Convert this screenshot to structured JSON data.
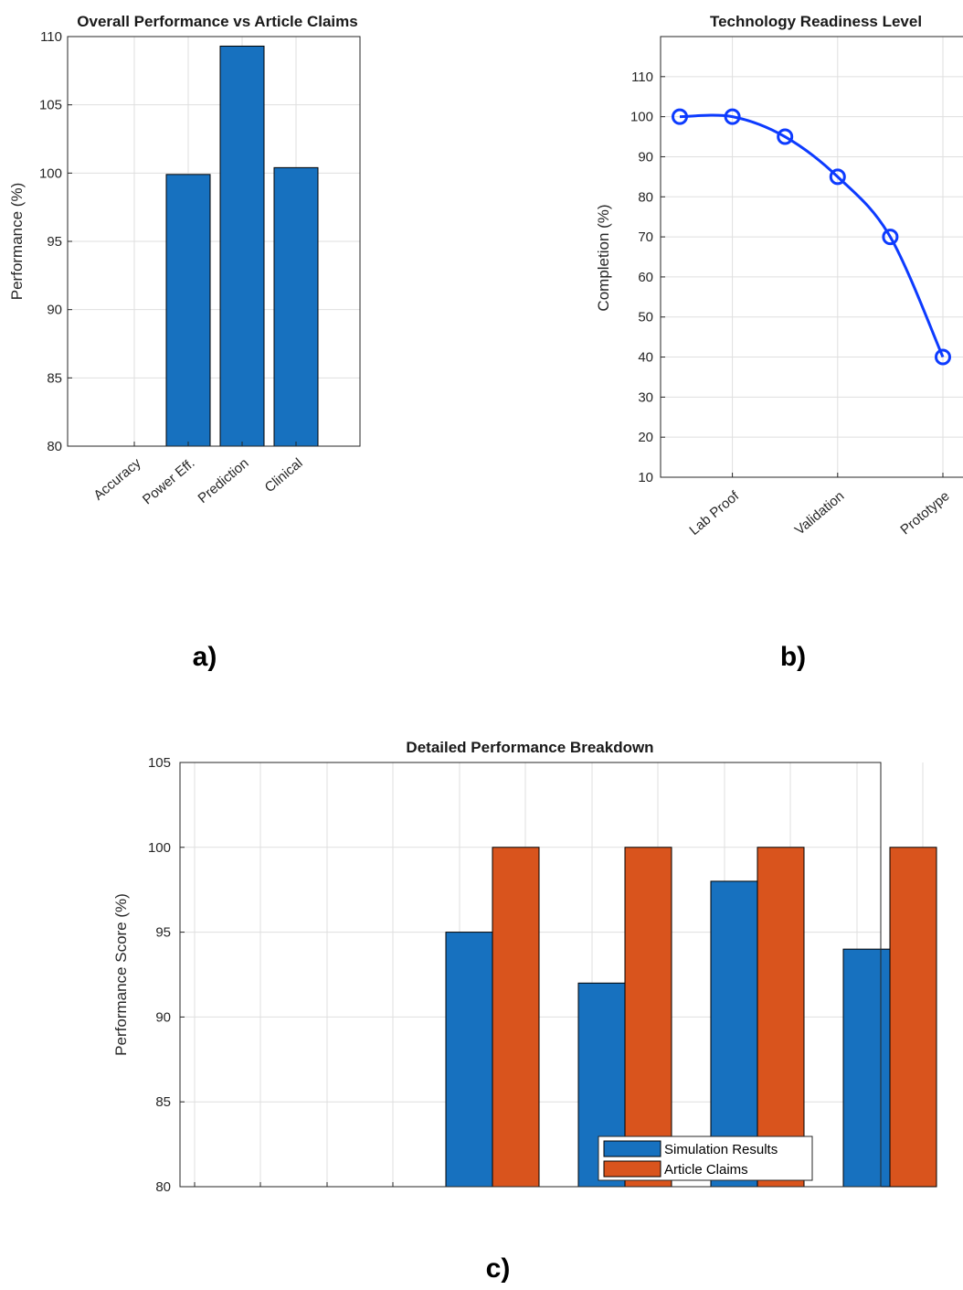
{
  "panel_labels": {
    "a": "a)",
    "b": "b)",
    "c": "c)"
  },
  "chart_data": [
    {
      "id": "a",
      "type": "bar",
      "title": "Overall Performance vs Article Claims",
      "ylabel": "Performance (%)",
      "xlabel": "",
      "categories": [
        "Accuracy",
        "Power Eff.",
        "Prediction",
        "Clinical"
      ],
      "values": [
        null,
        99.9,
        109.3,
        100.4
      ],
      "ylim": [
        80,
        110
      ],
      "yticks": [
        80,
        85,
        90,
        95,
        100,
        105,
        110
      ],
      "grid": true,
      "colors": {
        "bar": "#1771bf"
      }
    },
    {
      "id": "b",
      "type": "line",
      "title": "Technology Readiness Level",
      "ylabel": "Completion (%)",
      "xlabel": "",
      "x_tick_labels": [
        "Lab Proof",
        "Validation",
        "Prototype"
      ],
      "values": [
        100,
        100,
        95,
        85,
        70,
        40
      ],
      "ylim": [
        10,
        120
      ],
      "yticks": [
        10,
        20,
        30,
        40,
        50,
        60,
        70,
        80,
        90,
        100,
        110
      ],
      "grid": true,
      "colors": {
        "line": "#0d3bff"
      }
    },
    {
      "id": "c",
      "type": "bar",
      "title": "Detailed Performance Breakdown",
      "ylabel": "Performance Score (%)",
      "xlabel": "",
      "categories": [
        "",
        "",
        "",
        "",
        "",
        ""
      ],
      "series": [
        {
          "name": "Simulation Results",
          "values": [
            null,
            null,
            95,
            92,
            98,
            94
          ]
        },
        {
          "name": "Article Claims",
          "values": [
            null,
            null,
            100,
            100,
            100,
            100
          ]
        }
      ],
      "ylim": [
        80,
        105
      ],
      "yticks": [
        80,
        85,
        90,
        95,
        100,
        105
      ],
      "grid": true,
      "legend": "bottom-right",
      "colors": {
        "sim": "#1771bf",
        "claims": "#d9541d"
      }
    }
  ]
}
